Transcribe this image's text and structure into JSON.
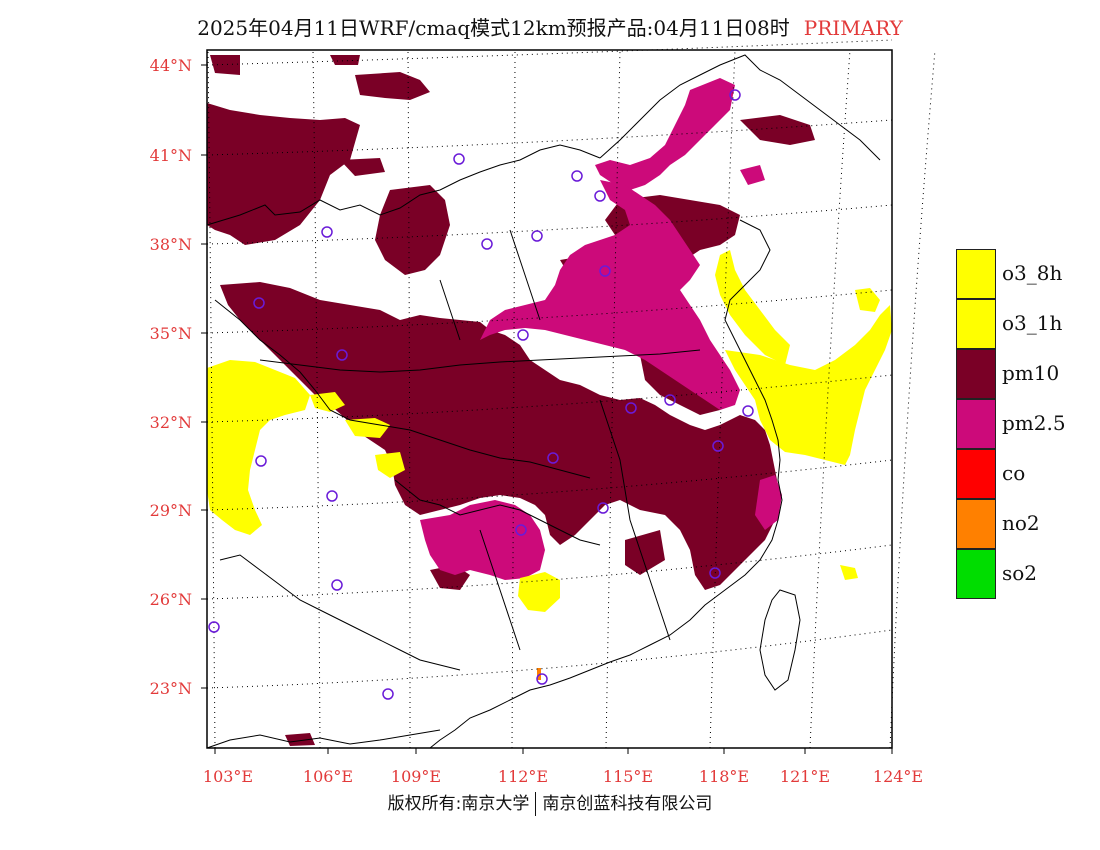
{
  "title": {
    "main": "2025年04月11日WRF/cmaq模式12km预报产品:04月11日08时",
    "tag": "PRIMARY",
    "tag_color": "#e23a3a"
  },
  "axes": {
    "lon_labels": [
      "103°E",
      "106°E",
      "109°E",
      "112°E",
      "115°E",
      "118°E",
      "121°E",
      "124°E"
    ],
    "lat_labels": [
      "44°N",
      "41°N",
      "38°N",
      "35°N",
      "32°N",
      "29°N",
      "26°N",
      "23°N"
    ],
    "label_color": "#e23a3a"
  },
  "legend": [
    {
      "label": "o3_8h",
      "color": "#ffff00"
    },
    {
      "label": "o3_1h",
      "color": "#ffff00"
    },
    {
      "label": "pm10",
      "color": "#7a0026"
    },
    {
      "label": "pm2.5",
      "color": "#cc0a7a"
    },
    {
      "label": "co",
      "color": "#ff0000"
    },
    {
      "label": "no2",
      "color": "#ff8000"
    },
    {
      "label": "so2",
      "color": "#00dd00"
    }
  ],
  "copyright": {
    "left": "版权所有:南京大学",
    "right": "南京创蓝科技有限公司"
  },
  "map_regions": [
    {
      "pollutant": "pm10"
    },
    {
      "pollutant": "pm2.5"
    },
    {
      "pollutant": "o3_1h"
    }
  ],
  "stations": [
    {
      "name": "station"
    }
  ]
}
